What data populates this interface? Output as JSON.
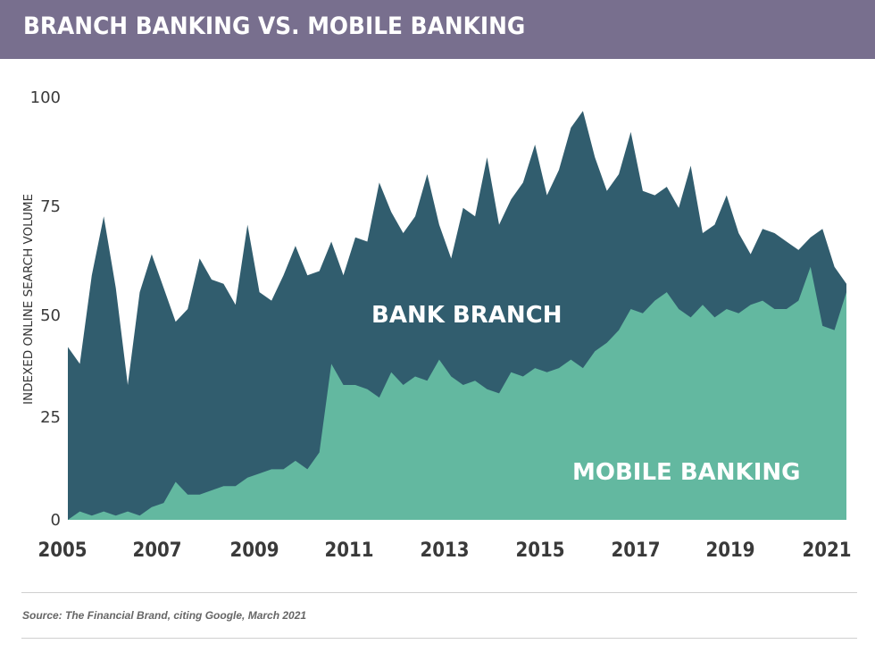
{
  "header": {
    "title": "BRANCH BANKING VS. MOBILE BANKING",
    "background": "#786f8e"
  },
  "chart_data": {
    "type": "area",
    "title": "BRANCH BANKING VS. MOBILE BANKING",
    "xlabel": "",
    "ylabel": "INDEXED ONLINE SEARCH VOLUME",
    "ylim": [
      0,
      100
    ],
    "yticks": [
      0,
      25,
      50,
      75,
      100
    ],
    "xticks": [
      "2005",
      "2007",
      "2009",
      "2011",
      "2013",
      "2015",
      "2017",
      "2019",
      "2021"
    ],
    "grid": false,
    "legend": "inline labels",
    "x": [
      2005.0,
      2005.25,
      2005.5,
      2005.75,
      2006.0,
      2006.25,
      2006.5,
      2006.75,
      2007.0,
      2007.25,
      2007.5,
      2007.75,
      2008.0,
      2008.25,
      2008.5,
      2008.75,
      2009.0,
      2009.25,
      2009.5,
      2009.75,
      2010.0,
      2010.25,
      2010.5,
      2010.75,
      2011.0,
      2011.25,
      2011.5,
      2011.75,
      2012.0,
      2012.25,
      2012.5,
      2012.75,
      2013.0,
      2013.25,
      2013.5,
      2013.75,
      2014.0,
      2014.25,
      2014.5,
      2014.75,
      2015.0,
      2015.25,
      2015.5,
      2015.75,
      2016.0,
      2016.25,
      2016.5,
      2016.75,
      2017.0,
      2017.25,
      2017.5,
      2017.75,
      2018.0,
      2018.25,
      2018.5,
      2018.75,
      2019.0,
      2019.25,
      2019.5,
      2019.75,
      2020.0,
      2020.25,
      2020.5,
      2020.75,
      2021.0,
      2021.25
    ],
    "series": [
      {
        "name": "BANK BRANCH",
        "color": "#315d6e",
        "values": [
          41,
          37,
          58,
          72,
          55,
          32,
          54,
          63,
          55,
          47,
          50,
          62,
          57,
          56,
          51,
          70,
          54,
          52,
          58,
          65,
          58,
          59,
          66,
          58,
          67,
          66,
          80,
          73,
          68,
          72,
          82,
          70,
          62,
          74,
          72,
          86,
          70,
          76,
          80,
          89,
          77,
          83,
          93,
          97,
          86,
          78,
          82,
          92,
          78,
          77,
          79,
          74,
          84,
          68,
          70,
          77,
          68,
          63,
          69,
          68,
          66,
          64,
          67,
          69,
          60,
          56
        ]
      },
      {
        "name": "MOBILE BANKING",
        "color": "#63b8a0",
        "values": [
          0,
          2,
          1,
          2,
          1,
          2,
          1,
          3,
          4,
          9,
          6,
          6,
          7,
          8,
          8,
          10,
          11,
          12,
          12,
          14,
          12,
          16,
          37,
          32,
          32,
          31,
          29,
          35,
          32,
          34,
          33,
          38,
          34,
          32,
          33,
          31,
          30,
          35,
          34,
          36,
          35,
          36,
          38,
          36,
          40,
          42,
          45,
          50,
          49,
          52,
          54,
          50,
          48,
          51,
          48,
          50,
          49,
          51,
          52,
          50,
          50,
          52,
          60,
          46,
          45,
          54
        ]
      }
    ],
    "annotations": [
      "BANK BRANCH",
      "MOBILE BANKING"
    ]
  },
  "axis": {
    "y_title": "INDEXED ONLINE SEARCH VOLUME",
    "y_ticks": [
      "100",
      "75",
      "50",
      "25",
      "0"
    ],
    "x_ticks": [
      "2005",
      "2007",
      "2009",
      "2011",
      "2013",
      "2015",
      "2017",
      "2019",
      "2021"
    ]
  },
  "labels": {
    "branch": "BANK BRANCH",
    "mobile": "MOBILE BANKING"
  },
  "footer": {
    "source": "Source: The Financial Brand, citing Google, March 2021"
  },
  "colors": {
    "branch": "#315d6e",
    "mobile": "#63b8a0",
    "header": "#786f8e"
  }
}
